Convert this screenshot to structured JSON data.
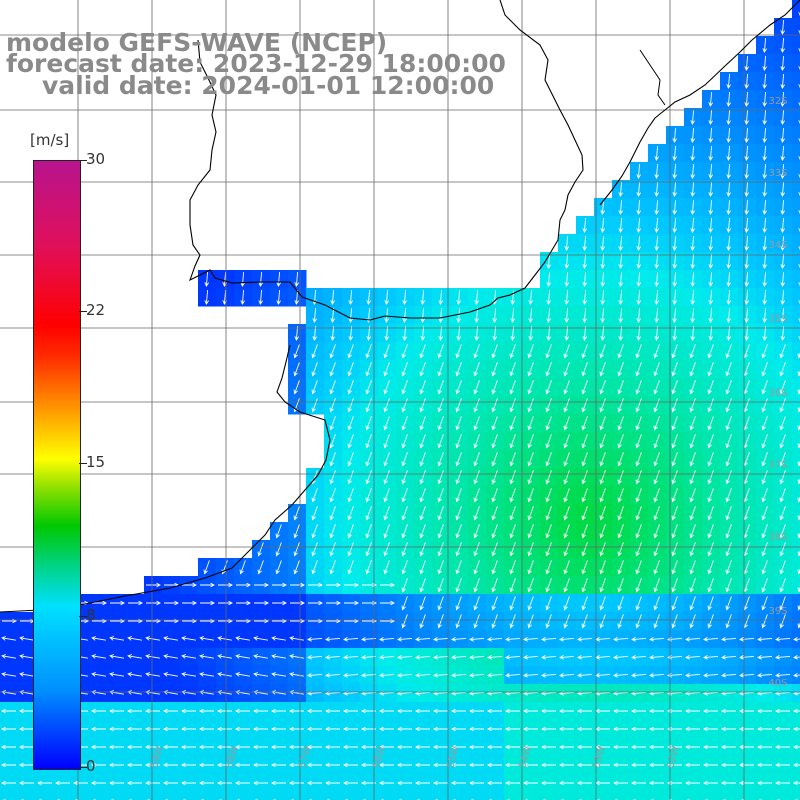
{
  "title": {
    "line1": "modelo GEFS-WAVE (NCEP)",
    "line2": "forecast date: 2023-12-29 18:00:00",
    "line3": "valid date: 2024-01-01 12:00:00"
  },
  "colorbar": {
    "unit": "[m/s]",
    "min": 0,
    "max": 30,
    "ticks": [
      "30",
      "22",
      "15",
      "8",
      "0"
    ],
    "tick_values": [
      30,
      22,
      15,
      8,
      0
    ]
  },
  "lat_labels": [
    "32S",
    "33S",
    "34S",
    "35S",
    "36S",
    "37S",
    "38S",
    "39S",
    "40S"
  ],
  "lon_labels": [
    "59W",
    "58W",
    "57W",
    "56W",
    "55W",
    "54W",
    "53W",
    "52W"
  ],
  "colors": {
    "land": "#ffffff",
    "coast": "#000000",
    "grid": "#666666",
    "arrow": "#ffffff",
    "title": "#8a8a8a"
  }
}
